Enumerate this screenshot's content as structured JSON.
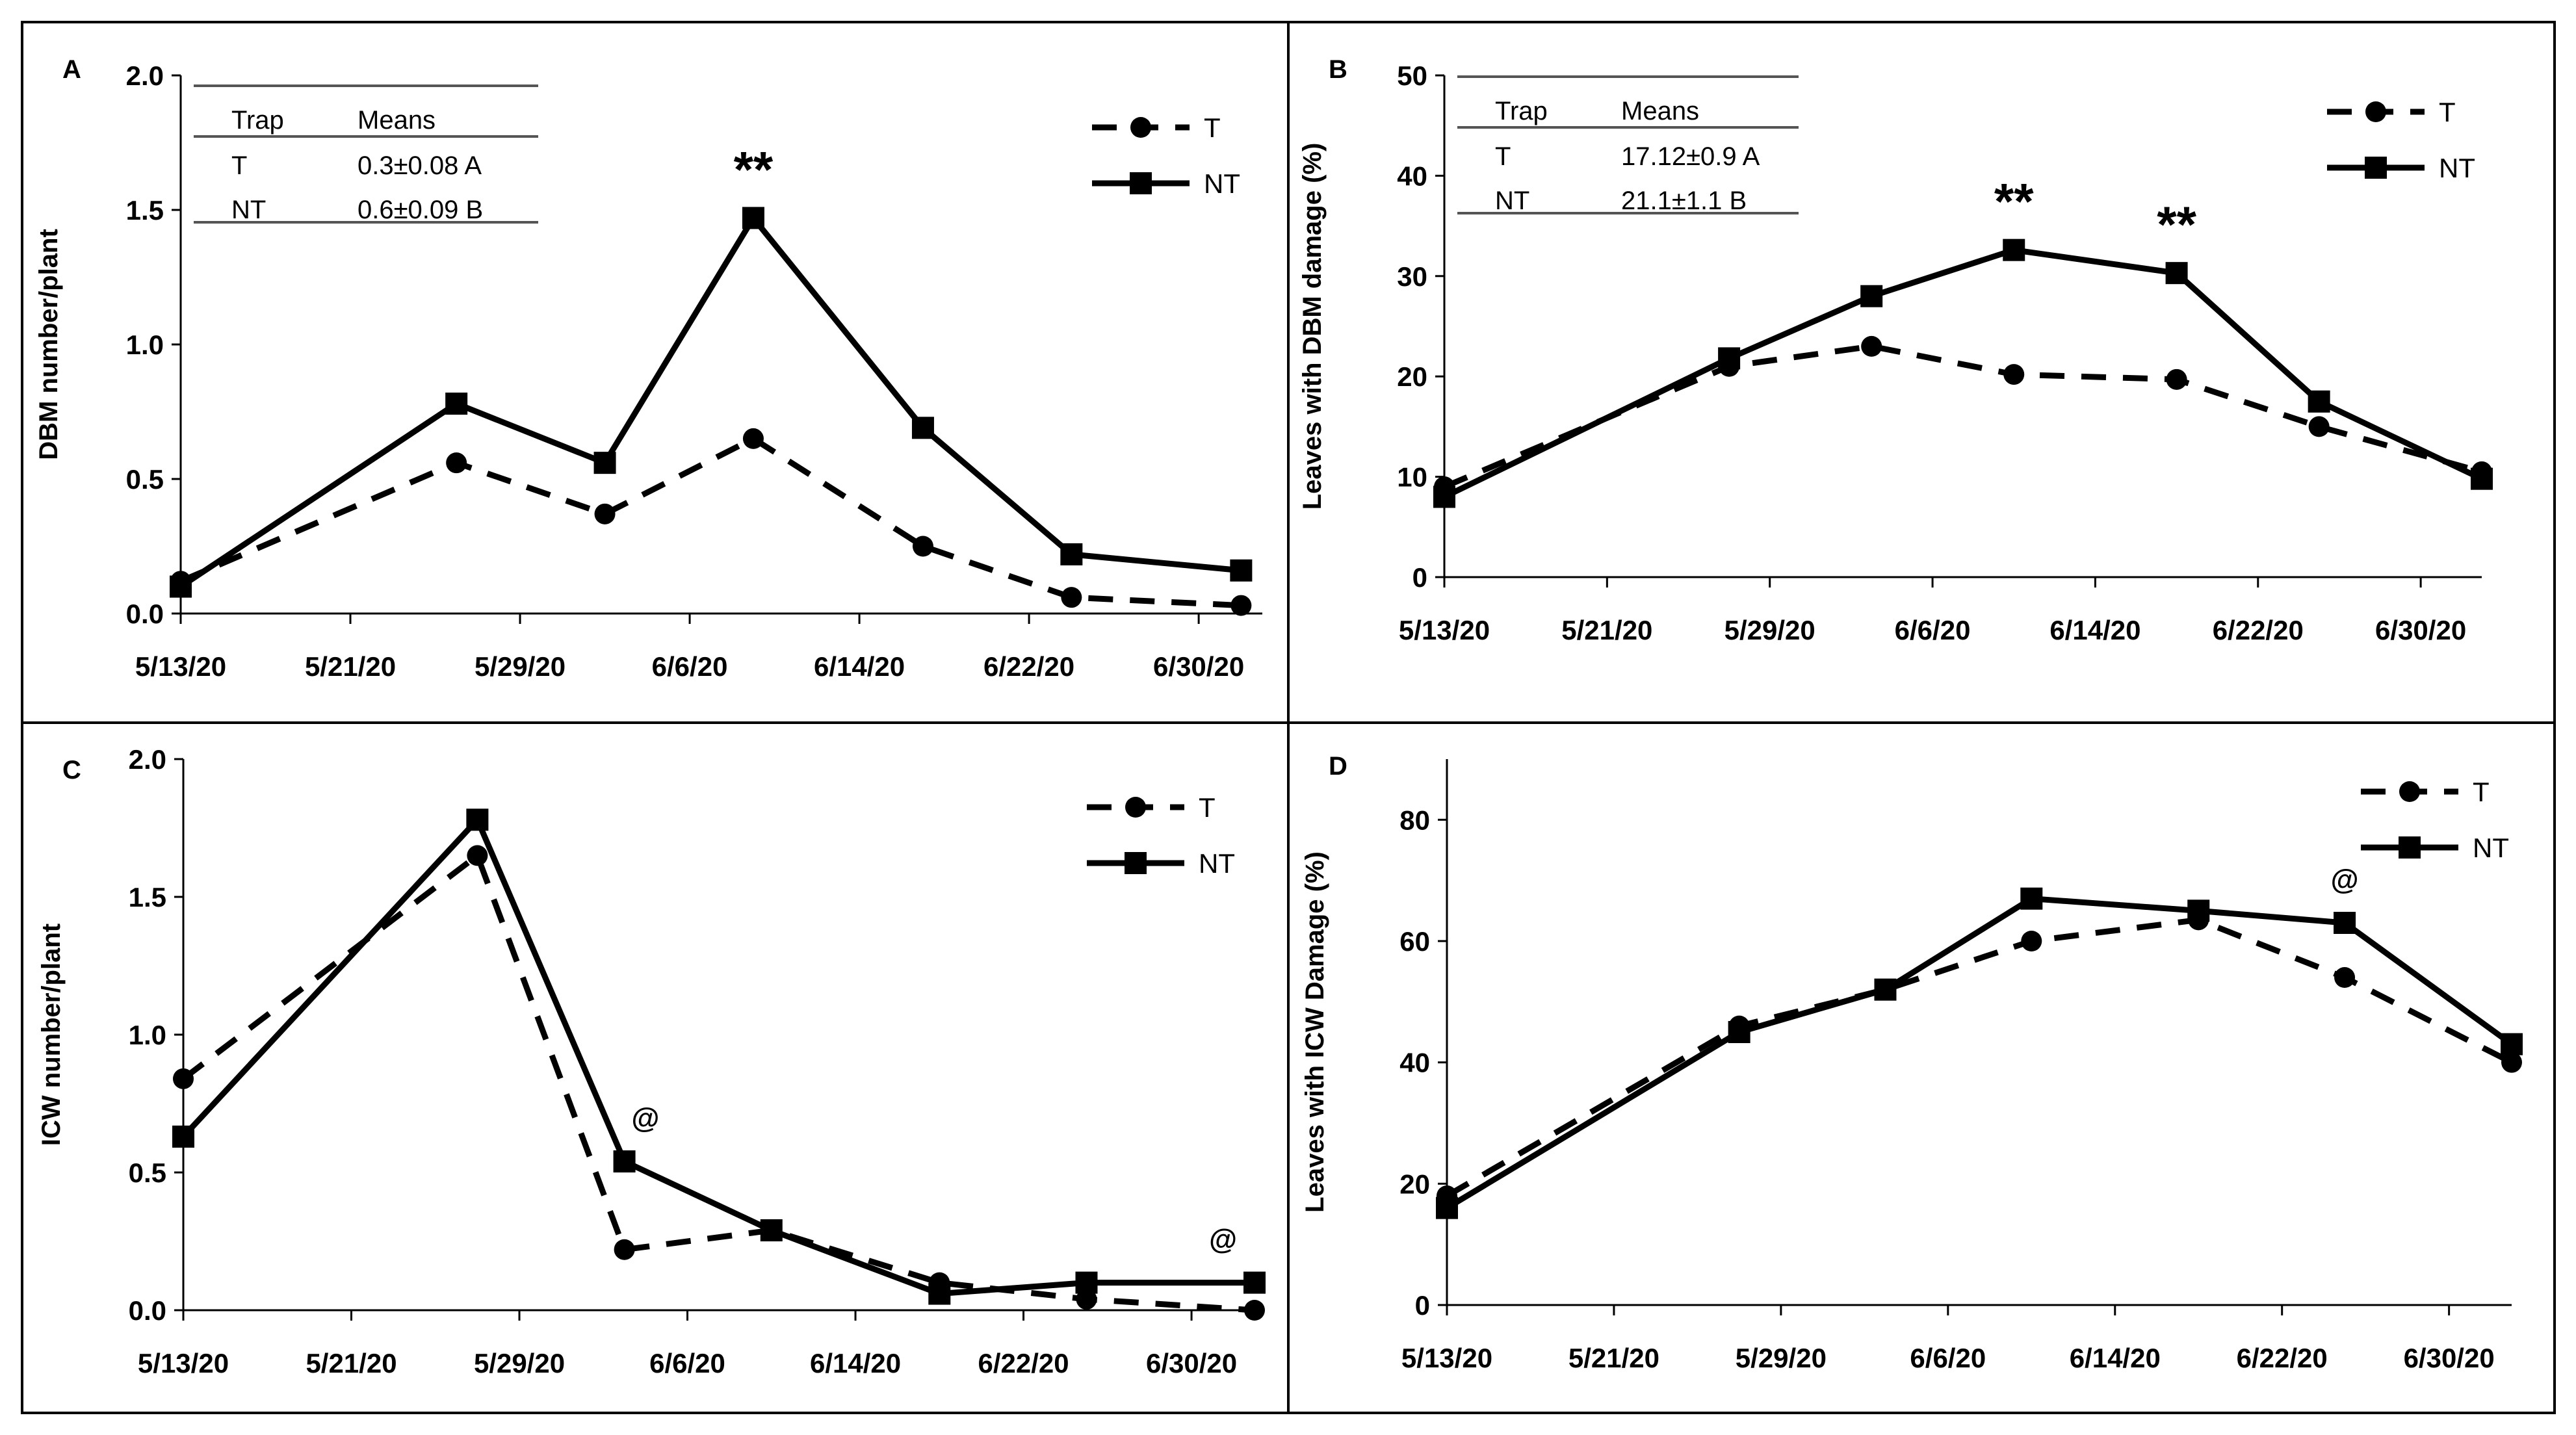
{
  "chart_data": [
    {
      "panel": "A",
      "type": "line",
      "ylabel": "DBM number/plant",
      "xlabel": "",
      "ylim": [
        0,
        2.0
      ],
      "yticks": [
        "0.0",
        "0.5",
        "1.0",
        "1.5",
        "2.0"
      ],
      "xticks": [
        "5/13/20",
        "5/21/20",
        "5/29/20",
        "6/6/20",
        "6/14/20",
        "6/22/20",
        "6/30/20"
      ],
      "xlim_days": [
        0,
        51
      ],
      "legend": {
        "position": "top-right",
        "entries": [
          "T",
          "NT"
        ]
      },
      "means_table": {
        "header": [
          "Trap",
          "Means"
        ],
        "rows": [
          [
            "T",
            "0.3±0.08 A"
          ],
          [
            "NT",
            "0.6±0.09 B"
          ]
        ]
      },
      "series": [
        {
          "name": "T",
          "style": "dashed-circle",
          "x_days": [
            0,
            13,
            20,
            27,
            35,
            42,
            50
          ],
          "values": [
            0.12,
            0.56,
            0.37,
            0.65,
            0.25,
            0.06,
            0.03
          ]
        },
        {
          "name": "NT",
          "style": "solid-square",
          "x_days": [
            0,
            13,
            20,
            27,
            35,
            42,
            50
          ],
          "values": [
            0.1,
            0.78,
            0.56,
            1.47,
            0.69,
            0.22,
            0.16
          ]
        }
      ],
      "annotations": [
        {
          "text": "**",
          "x_day": 27
        }
      ]
    },
    {
      "panel": "B",
      "type": "line",
      "ylabel": "Leaves with DBM damage (%)",
      "xlabel": "",
      "ylim": [
        0,
        50
      ],
      "yticks": [
        "0",
        "10",
        "20",
        "30",
        "40",
        "50"
      ],
      "xticks": [
        "5/13/20",
        "5/21/20",
        "5/29/20",
        "6/6/20",
        "6/14/20",
        "6/22/20",
        "6/30/20"
      ],
      "xlim_days": [
        0,
        51
      ],
      "legend": {
        "position": "top-right",
        "entries": [
          "T",
          "NT"
        ]
      },
      "means_table": {
        "header": [
          "Trap",
          "Means"
        ],
        "rows": [
          [
            "T",
            "17.12±0.9 A"
          ],
          [
            "NT",
            "21.1±1.1 B"
          ]
        ]
      },
      "series": [
        {
          "name": "T",
          "style": "dashed-circle",
          "x_days": [
            0,
            14,
            21,
            28,
            36,
            43,
            51
          ],
          "values": [
            9,
            21,
            23,
            20.2,
            19.7,
            15,
            10.5
          ]
        },
        {
          "name": "NT",
          "style": "solid-square",
          "x_days": [
            0,
            14,
            21,
            28,
            36,
            43,
            51
          ],
          "values": [
            8,
            21.8,
            28,
            32.6,
            30.3,
            17.5,
            9.8
          ]
        }
      ],
      "annotations": [
        {
          "text": "**",
          "x_day": 28
        },
        {
          "text": "**",
          "x_day": 36
        }
      ]
    },
    {
      "panel": "C",
      "type": "line",
      "ylabel": "ICW number/plant",
      "xlabel": "",
      "ylim": [
        0,
        2.0
      ],
      "yticks": [
        "0.0",
        "0.5",
        "1.0",
        "1.5",
        "2.0"
      ],
      "xticks": [
        "5/13/20",
        "5/21/20",
        "5/29/20",
        "6/6/20",
        "6/14/20",
        "6/22/20",
        "6/30/20"
      ],
      "xlim_days": [
        0,
        51
      ],
      "legend": {
        "position": "top-right",
        "entries": [
          "T",
          "NT"
        ]
      },
      "series": [
        {
          "name": "T",
          "style": "dashed-circle",
          "x_days": [
            0,
            14,
            21,
            28,
            36,
            43,
            51
          ],
          "values": [
            0.84,
            1.65,
            0.22,
            0.29,
            0.1,
            0.04,
            0.0
          ]
        },
        {
          "name": "NT",
          "style": "solid-square",
          "x_days": [
            0,
            14,
            21,
            28,
            36,
            43,
            51
          ],
          "values": [
            0.63,
            1.78,
            0.54,
            0.29,
            0.06,
            0.1,
            0.1
          ]
        }
      ],
      "annotations": [
        {
          "text": "@",
          "x_day": 22
        },
        {
          "text": "@",
          "x_day": 49.5
        }
      ]
    },
    {
      "panel": "D",
      "type": "line",
      "ylabel": "Leaves with ICW Damage (%)",
      "xlabel": "",
      "ylim": [
        0,
        90
      ],
      "yticks": [
        "0",
        "20",
        "40",
        "60",
        "80"
      ],
      "xticks": [
        "5/13/20",
        "5/21/20",
        "5/29/20",
        "6/6/20",
        "6/14/20",
        "6/22/20",
        "6/30/20"
      ],
      "xlim_days": [
        0,
        51
      ],
      "legend": {
        "position": "top-right",
        "entries": [
          "T",
          "NT"
        ]
      },
      "series": [
        {
          "name": "T",
          "style": "dashed-circle",
          "x_days": [
            0,
            14,
            21,
            28,
            36,
            43,
            51
          ],
          "values": [
            18,
            46,
            52,
            60,
            63.5,
            54,
            40
          ]
        },
        {
          "name": "NT",
          "style": "solid-square",
          "x_days": [
            0,
            14,
            21,
            28,
            36,
            43,
            51
          ],
          "values": [
            16,
            45,
            52,
            67,
            65,
            63,
            43
          ]
        }
      ],
      "annotations": [
        {
          "text": "@",
          "x_day": 43
        }
      ]
    }
  ]
}
